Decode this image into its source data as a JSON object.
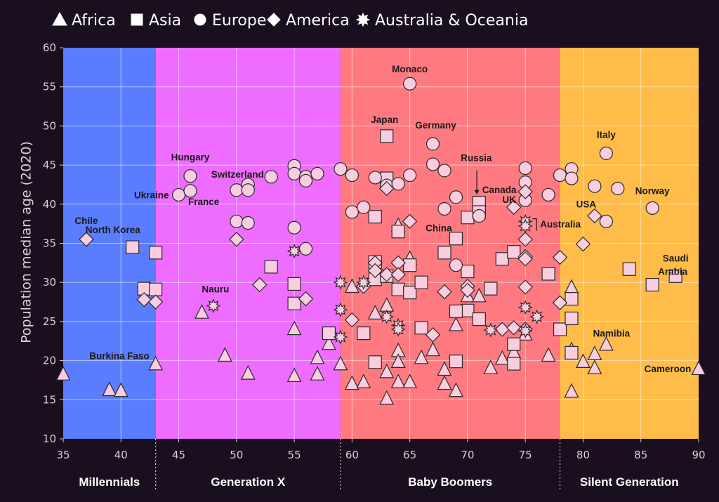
{
  "chart_data": {
    "type": "scatter",
    "xlim": [
      35,
      90
    ],
    "ylim": [
      10,
      60
    ],
    "ylabel": "Population median age (2020)",
    "xticks": [
      35,
      40,
      45,
      50,
      55,
      60,
      65,
      70,
      75,
      80,
      85,
      90
    ],
    "yticks": [
      10,
      15,
      20,
      25,
      30,
      35,
      40,
      45,
      50,
      55,
      60
    ],
    "legend": {
      "placement": "top-left",
      "entries": [
        {
          "name": "Africa",
          "shape": "triangle"
        },
        {
          "name": "Asia",
          "shape": "square"
        },
        {
          "name": "Europe",
          "shape": "circle"
        },
        {
          "name": "America",
          "shape": "diamond"
        },
        {
          "name": "Australia & Oceania",
          "shape": "asterisk"
        }
      ]
    },
    "generations": [
      {
        "name": "Millennials",
        "start": 35,
        "end": 43,
        "color": "#5a7cff"
      },
      {
        "name": "Generation X",
        "start": 43,
        "end": 59,
        "color": "#ee6cff"
      },
      {
        "name": "Baby Boomers",
        "start": 59,
        "end": 78,
        "color": "#ff7a80"
      },
      {
        "name": "Silent Generation",
        "start": 78,
        "end": 90,
        "color": "#ffbc48"
      }
    ],
    "series": [
      {
        "name": "Africa",
        "shape": "triangle",
        "points": [
          [
            35,
            18.2
          ],
          [
            39,
            16.2
          ],
          [
            40,
            16.1
          ],
          [
            43,
            19.5
          ],
          [
            47,
            26.1
          ],
          [
            49,
            20.6
          ],
          [
            51,
            18.3
          ],
          [
            55,
            24
          ],
          [
            55,
            18
          ],
          [
            57,
            20.3
          ],
          [
            57,
            18.2
          ],
          [
            58,
            22.1
          ],
          [
            59,
            19.5
          ],
          [
            60,
            29.4
          ],
          [
            60,
            17
          ],
          [
            61,
            17.2
          ],
          [
            62,
            26
          ],
          [
            63,
            27
          ],
          [
            63,
            18.5
          ],
          [
            63,
            15.1
          ],
          [
            64,
            37.2
          ],
          [
            64,
            21.2
          ],
          [
            64,
            19.8
          ],
          [
            64,
            17.2
          ],
          [
            65,
            33
          ],
          [
            65,
            17.2
          ],
          [
            66,
            20.3
          ],
          [
            67,
            21.3
          ],
          [
            68,
            18.8
          ],
          [
            68,
            17
          ],
          [
            69,
            24.5
          ],
          [
            69,
            16.1
          ],
          [
            70,
            28.2
          ],
          [
            71,
            28.2
          ],
          [
            72,
            19
          ],
          [
            73,
            20.2
          ],
          [
            74,
            21
          ],
          [
            75,
            23.3
          ],
          [
            77,
            20.6
          ],
          [
            79,
            29.3
          ],
          [
            79,
            21.3
          ],
          [
            79,
            16
          ],
          [
            80,
            19.8
          ],
          [
            81,
            20.8
          ],
          [
            81,
            19
          ],
          [
            82,
            22
          ],
          [
            90,
            18.9
          ]
        ]
      },
      {
        "name": "Asia",
        "shape": "square",
        "points": [
          [
            41,
            34.5
          ],
          [
            42,
            29.2
          ],
          [
            43,
            33.8
          ],
          [
            43,
            29.1
          ],
          [
            53,
            32
          ],
          [
            55,
            29.8
          ],
          [
            55,
            27.3
          ],
          [
            58,
            23.5
          ],
          [
            61,
            23.5
          ],
          [
            62,
            38.4
          ],
          [
            62,
            32.6
          ],
          [
            62,
            30.4
          ],
          [
            62,
            19.8
          ],
          [
            63,
            48.7
          ],
          [
            63,
            43.3
          ],
          [
            63,
            30.8
          ],
          [
            64,
            36.5
          ],
          [
            64,
            29.1
          ],
          [
            65,
            32.2
          ],
          [
            65,
            28.7
          ],
          [
            66,
            30
          ],
          [
            66,
            24.2
          ],
          [
            68,
            33.8
          ],
          [
            69,
            35.6
          ],
          [
            69,
            19.9
          ],
          [
            70,
            38.3
          ],
          [
            70,
            31.4
          ],
          [
            70,
            26.4
          ],
          [
            69,
            26.3
          ],
          [
            71,
            40.2
          ],
          [
            71,
            39
          ],
          [
            71,
            25.3
          ],
          [
            72,
            29.2
          ],
          [
            73,
            33
          ],
          [
            74,
            33.9
          ],
          [
            74,
            22.1
          ],
          [
            74,
            19.6
          ],
          [
            77,
            31.1
          ],
          [
            78,
            24
          ],
          [
            79,
            27.9
          ],
          [
            79,
            25.4
          ],
          [
            79,
            21
          ],
          [
            84,
            31.7
          ],
          [
            86,
            29.7
          ],
          [
            88,
            30.8
          ]
        ]
      },
      {
        "name": "Europe",
        "shape": "circle",
        "points": [
          [
            45,
            41.2
          ],
          [
            46,
            43.6
          ],
          [
            46,
            41.7
          ],
          [
            50,
            41.8
          ],
          [
            51,
            42.5
          ],
          [
            51,
            41.8
          ],
          [
            50,
            37.8
          ],
          [
            51,
            37.6
          ],
          [
            53,
            43.5
          ],
          [
            55,
            44.9
          ],
          [
            55,
            43.9
          ],
          [
            56,
            43.5
          ],
          [
            56,
            43
          ],
          [
            57,
            43.9
          ],
          [
            55,
            37
          ],
          [
            56,
            34.3
          ],
          [
            59,
            44.5
          ],
          [
            60,
            43.7
          ],
          [
            60,
            39
          ],
          [
            61,
            39.6
          ],
          [
            62,
            43.4
          ],
          [
            63,
            42.4
          ],
          [
            64,
            42.6
          ],
          [
            65,
            43.7
          ],
          [
            65,
            55.4
          ],
          [
            67,
            47.7
          ],
          [
            67,
            45.1
          ],
          [
            68,
            44.3
          ],
          [
            68,
            39.4
          ],
          [
            69,
            40.9
          ],
          [
            69,
            32.2
          ],
          [
            71,
            38.5
          ],
          [
            75,
            44.6
          ],
          [
            75,
            42.8
          ],
          [
            75,
            40.5
          ],
          [
            77,
            41.2
          ],
          [
            78,
            43.7
          ],
          [
            79,
            44.5
          ],
          [
            79,
            43.3
          ],
          [
            81,
            42.3
          ],
          [
            82,
            46.5
          ],
          [
            82,
            37.8
          ],
          [
            83,
            42
          ],
          [
            86,
            39.5
          ]
        ]
      },
      {
        "name": "America",
        "shape": "diamond",
        "points": [
          [
            37,
            35.5
          ],
          [
            42,
            27.8
          ],
          [
            43,
            27.5
          ],
          [
            50,
            35.5
          ],
          [
            52,
            29.7
          ],
          [
            56,
            27.9
          ],
          [
            60,
            25.2
          ],
          [
            61,
            29.5
          ],
          [
            62,
            32.5
          ],
          [
            62,
            31.5
          ],
          [
            63,
            31
          ],
          [
            63,
            42
          ],
          [
            64,
            32.5
          ],
          [
            64,
            31
          ],
          [
            65,
            37.8
          ],
          [
            67,
            23.3
          ],
          [
            68,
            28.8
          ],
          [
            70,
            29.5
          ],
          [
            70,
            29
          ],
          [
            73,
            24
          ],
          [
            74,
            39.6
          ],
          [
            74,
            24.2
          ],
          [
            75,
            41.6
          ],
          [
            75,
            35.5
          ],
          [
            75,
            33.3
          ],
          [
            75,
            33
          ],
          [
            75,
            29.4
          ],
          [
            75,
            24
          ],
          [
            78,
            33.2
          ],
          [
            78,
            27.4
          ],
          [
            80,
            34.9
          ],
          [
            81,
            38.5
          ]
        ]
      },
      {
        "name": "Australia & Oceania",
        "shape": "asterisk",
        "points": [
          [
            48,
            27
          ],
          [
            55,
            34
          ],
          [
            59,
            30
          ],
          [
            59,
            26.5
          ],
          [
            59,
            23
          ],
          [
            61,
            30
          ],
          [
            63,
            25.6
          ],
          [
            64,
            24.5
          ],
          [
            64,
            24
          ],
          [
            72,
            23.9
          ],
          [
            75,
            37.8
          ],
          [
            75,
            37.2
          ],
          [
            75,
            26.8
          ],
          [
            75,
            23.8
          ],
          [
            76,
            25.6
          ]
        ]
      }
    ],
    "labels": [
      {
        "text": "Burkina Faso",
        "x": 35,
        "y": 18.2
      },
      {
        "text": "Chile",
        "x": 37,
        "y": 35.5
      },
      {
        "text": "North Korea",
        "x": 41,
        "y": 34.5
      },
      {
        "text": "Ukraine",
        "x": 45,
        "y": 41.2
      },
      {
        "text": "Hungary",
        "x": 46,
        "y": 43.6
      },
      {
        "text": "France",
        "x": 46,
        "y": 41.7
      },
      {
        "text": "Switzerland",
        "x": 51,
        "y": 42.5
      },
      {
        "text": "Nauru",
        "x": 48,
        "y": 27
      },
      {
        "text": "Japan",
        "x": 63,
        "y": 48.7
      },
      {
        "text": "Monaco",
        "x": 65,
        "y": 55.4
      },
      {
        "text": "Germany",
        "x": 67,
        "y": 47.7
      },
      {
        "text": "Russia",
        "x": 71,
        "y": 40.2
      },
      {
        "text": "Canada",
        "x": 75,
        "y": 40.5
      },
      {
        "text": "UK",
        "x": 75,
        "y": 40.5
      },
      {
        "text": "China",
        "x": 70,
        "y": 38.3
      },
      {
        "text": "Australia",
        "x": 75,
        "y": 37.2
      },
      {
        "text": "Italy",
        "x": 82,
        "y": 46.5
      },
      {
        "text": "USA",
        "x": 81,
        "y": 38.5
      },
      {
        "text": "Norway",
        "x": 86,
        "y": 39.5
      },
      {
        "text": "Saudi",
        "x": 88,
        "y": 30.8
      },
      {
        "text": "Arabia",
        "x": 88,
        "y": 30.8
      },
      {
        "text": "Namibia",
        "x": 81,
        "y": 20.8
      },
      {
        "text": "Cameroon",
        "x": 90,
        "y": 18.9
      }
    ],
    "colors": {
      "background": "#1a0f1f",
      "marker_fill": "#f8cde0",
      "marker_stroke": "#2a2a2a",
      "grid": "#ffffff"
    }
  }
}
